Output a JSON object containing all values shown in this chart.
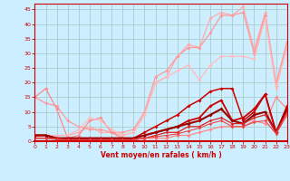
{
  "background_color": "#cceeff",
  "grid_color": "#aacccc",
  "xlim": [
    0,
    23
  ],
  "ylim": [
    0,
    47
  ],
  "yticks": [
    0,
    5,
    10,
    15,
    20,
    25,
    30,
    35,
    40,
    45
  ],
  "xticks": [
    0,
    1,
    2,
    3,
    4,
    5,
    6,
    7,
    8,
    9,
    10,
    11,
    12,
    13,
    14,
    15,
    16,
    17,
    18,
    19,
    20,
    21,
    22,
    23
  ],
  "xlabel": "Vent moyen/en rafales ( km/h )",
  "series": [
    {
      "x": [
        0,
        1,
        2,
        3,
        4,
        5,
        6,
        7,
        8,
        9,
        10,
        11,
        12,
        13,
        14,
        15,
        16,
        17,
        18,
        19,
        20,
        21,
        22,
        23
      ],
      "y": [
        2,
        2,
        2,
        2,
        3,
        5,
        3,
        3,
        2,
        3,
        9,
        20,
        22,
        29,
        33,
        32,
        42,
        44,
        43,
        46,
        31,
        44,
        20,
        34
      ],
      "color": "#ffaaaa",
      "lw": 0.9,
      "marker": "D",
      "ms": 2.0
    },
    {
      "x": [
        0,
        1,
        2,
        3,
        4,
        5,
        6,
        7,
        8,
        9,
        10,
        11,
        12,
        13,
        14,
        15,
        16,
        17,
        18,
        19,
        20,
        21,
        22,
        23
      ],
      "y": [
        15,
        13,
        12,
        7,
        5,
        4,
        4,
        3,
        3,
        4,
        10,
        22,
        24,
        29,
        32,
        32,
        37,
        43,
        43,
        44,
        30,
        43,
        19,
        34
      ],
      "color": "#ff9999",
      "lw": 0.9,
      "marker": "D",
      "ms": 2.0
    },
    {
      "x": [
        0,
        1,
        2,
        3,
        4,
        5,
        6,
        7,
        8,
        9,
        10,
        11,
        12,
        13,
        14,
        15,
        16,
        17,
        18,
        19,
        20,
        21,
        22,
        23
      ],
      "y": [
        15,
        18,
        11,
        1,
        2,
        7,
        8,
        3,
        1,
        1,
        1,
        1,
        1,
        2,
        2,
        3,
        4,
        5,
        5,
        5,
        7,
        6,
        15,
        11
      ],
      "color": "#ff8888",
      "lw": 0.9,
      "marker": "D",
      "ms": 2.0
    },
    {
      "x": [
        0,
        1,
        2,
        3,
        4,
        5,
        6,
        7,
        8,
        9,
        10,
        11,
        12,
        13,
        14,
        15,
        16,
        17,
        18,
        19,
        20,
        21,
        22,
        23
      ],
      "y": [
        1,
        2,
        2,
        2,
        4,
        8,
        7,
        4,
        2,
        3,
        9,
        20,
        22,
        24,
        26,
        21,
        26,
        29,
        29,
        29,
        28,
        42,
        18,
        32
      ],
      "color": "#ffbbbb",
      "lw": 0.9,
      "marker": "D",
      "ms": 2.0
    },
    {
      "x": [
        0,
        1,
        2,
        3,
        4,
        5,
        6,
        7,
        8,
        9,
        10,
        11,
        12,
        13,
        14,
        15,
        16,
        17,
        18,
        19,
        20,
        21,
        22,
        23
      ],
      "y": [
        2,
        2,
        1,
        1,
        1,
        1,
        1,
        1,
        1,
        1,
        2,
        3,
        4,
        5,
        7,
        8,
        12,
        14,
        7,
        8,
        11,
        16,
        3,
        12
      ],
      "color": "#cc0000",
      "lw": 1.3,
      "marker": "D",
      "ms": 2.0
    },
    {
      "x": [
        0,
        1,
        2,
        3,
        4,
        5,
        6,
        7,
        8,
        9,
        10,
        11,
        12,
        13,
        14,
        15,
        16,
        17,
        18,
        19,
        20,
        21,
        22,
        23
      ],
      "y": [
        2,
        2,
        1,
        1,
        1,
        1,
        1,
        1,
        1,
        1,
        3,
        5,
        7,
        9,
        12,
        14,
        17,
        18,
        18,
        7,
        10,
        16,
        3,
        11
      ],
      "color": "#cc0000",
      "lw": 1.1,
      "marker": "D",
      "ms": 2.0
    },
    {
      "x": [
        0,
        1,
        2,
        3,
        4,
        5,
        6,
        7,
        8,
        9,
        10,
        11,
        12,
        13,
        14,
        15,
        16,
        17,
        18,
        19,
        20,
        21,
        22,
        23
      ],
      "y": [
        2,
        2,
        1,
        1,
        1,
        1,
        1,
        1,
        1,
        1,
        2,
        3,
        4,
        5,
        6,
        7,
        9,
        11,
        7,
        6,
        9,
        10,
        3,
        11
      ],
      "color": "#990000",
      "lw": 1.5,
      "marker": "D",
      "ms": 2.0
    },
    {
      "x": [
        0,
        1,
        2,
        3,
        4,
        5,
        6,
        7,
        8,
        9,
        10,
        11,
        12,
        13,
        14,
        15,
        16,
        17,
        18,
        19,
        20,
        21,
        22,
        23
      ],
      "y": [
        1,
        1,
        1,
        0.5,
        0.5,
        0.5,
        0.5,
        0.5,
        0.5,
        0.5,
        1,
        2,
        3,
        3,
        5,
        5,
        7,
        8,
        6,
        6,
        8,
        9,
        3,
        10
      ],
      "color": "#dd2222",
      "lw": 0.9,
      "marker": "D",
      "ms": 1.8
    },
    {
      "x": [
        0,
        1,
        2,
        3,
        4,
        5,
        6,
        7,
        8,
        9,
        10,
        11,
        12,
        13,
        14,
        15,
        16,
        17,
        18,
        19,
        20,
        21,
        22,
        23
      ],
      "y": [
        1,
        1,
        0.5,
        0.5,
        0.5,
        0.5,
        0.5,
        0.5,
        0.5,
        0.5,
        1,
        1.5,
        2,
        2.5,
        3.5,
        4.5,
        6,
        7,
        5,
        5,
        6.5,
        7,
        2.5,
        9
      ],
      "color": "#ee4444",
      "lw": 0.8,
      "marker": "D",
      "ms": 1.8
    }
  ]
}
